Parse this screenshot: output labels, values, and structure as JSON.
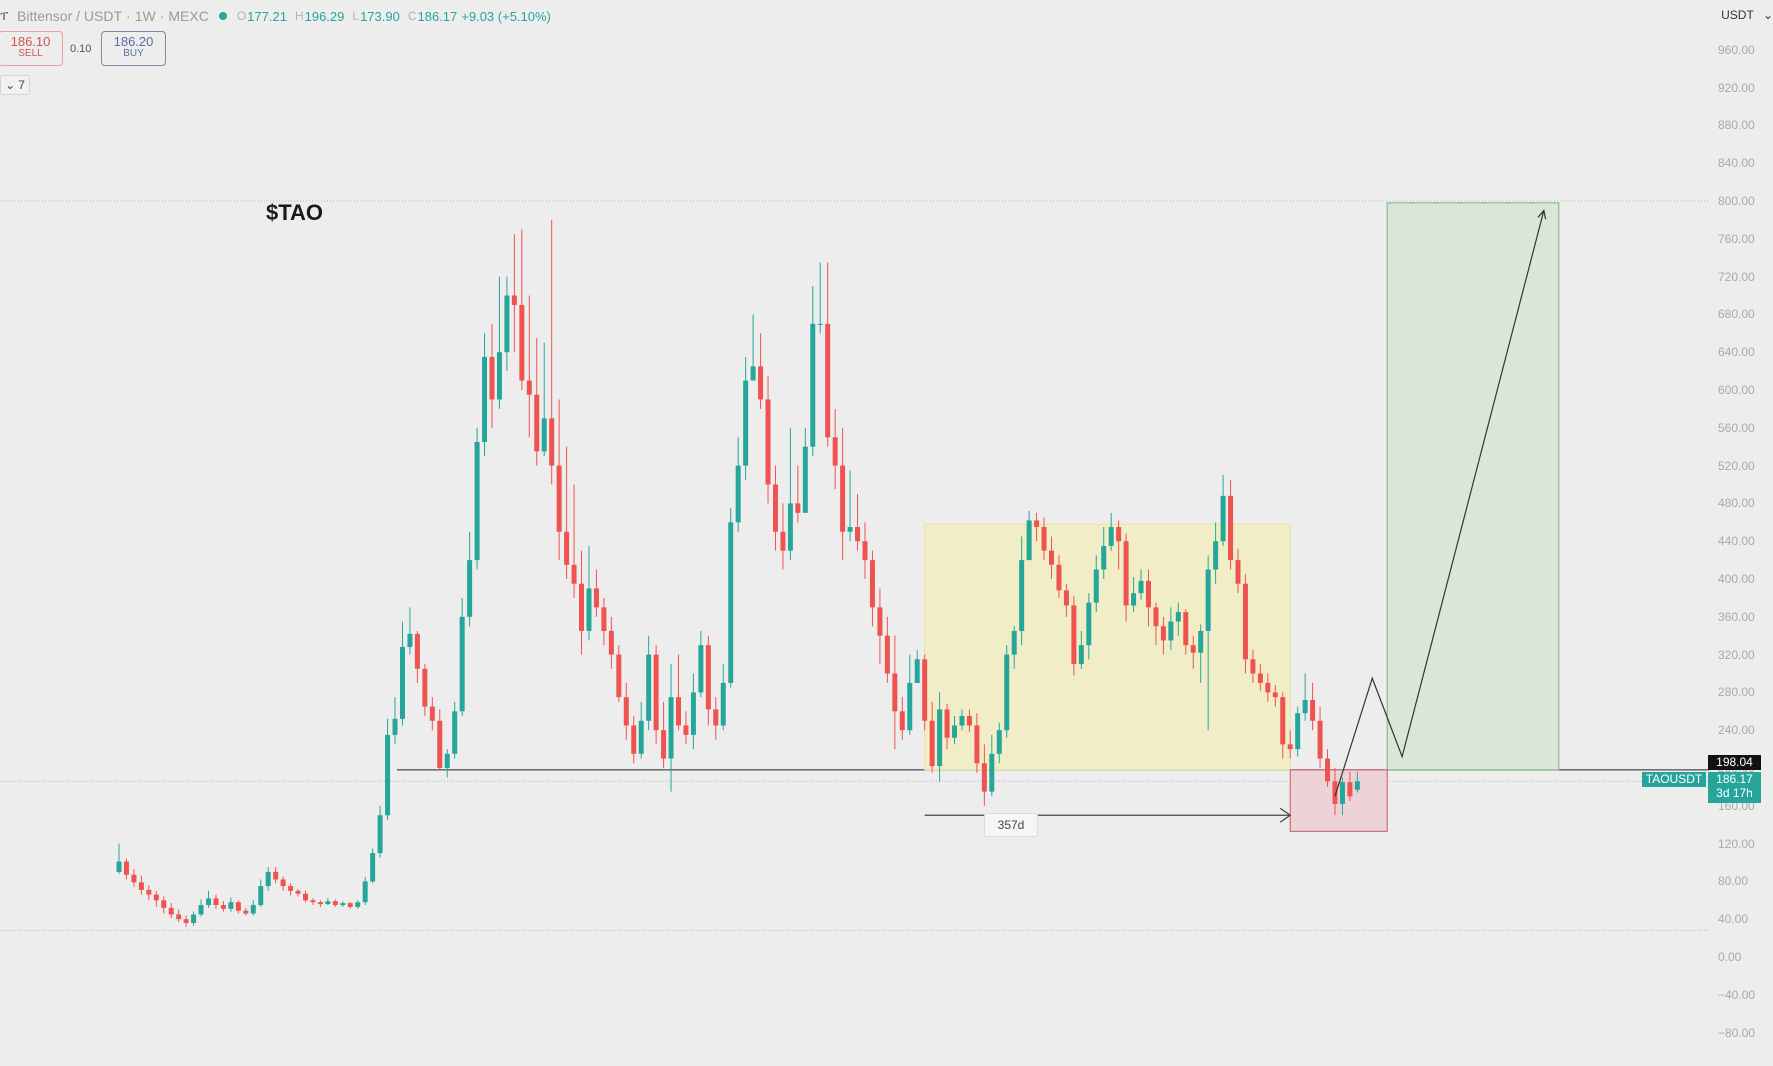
{
  "header": {
    "symbol": "Bittensor / USDT",
    "interval": "1W",
    "exchange": "MEXC",
    "open_label": "O",
    "open": "177.21",
    "high_label": "H",
    "high": "196.29",
    "low_label": "L",
    "low": "173.90",
    "close_label": "C",
    "close": "186.17",
    "change": "+9.03 (+5.10%)"
  },
  "trade": {
    "sell_price": "186.10",
    "sell_label": "SELL",
    "spread": "0.10",
    "buy_price": "186.20",
    "buy_label": "BUY"
  },
  "indicator_toggle": "7",
  "currency": "USDT",
  "annotations": {
    "ticker_title": "$TAO",
    "level_tag": "198.04",
    "symbol_tag": "TAOUSDT",
    "price_tag": "186.17",
    "countdown": "3d 17h",
    "duration_label": "357d"
  },
  "colors": {
    "up": "#26a69a",
    "down": "#ef5350",
    "range_box": "#f1ecbf",
    "target_box": "#d5e5d3",
    "stop_box": "#eccdd3"
  },
  "chart_data": {
    "type": "candlestick",
    "title": "$TAO",
    "xlabel": "",
    "ylabel": "",
    "y_axis_labels": [
      "960.00",
      "920.00",
      "880.00",
      "840.00",
      "800.00",
      "760.00",
      "720.00",
      "680.00",
      "640.00",
      "600.00",
      "560.00",
      "520.00",
      "480.00",
      "440.00",
      "400.00",
      "360.00",
      "320.00",
      "280.00",
      "240.00",
      "200.00",
      "160.00",
      "120.00",
      "80.00",
      "40.00",
      "0.00",
      "−40.00",
      "−80.00"
    ],
    "ylim": [
      -90,
      1010
    ],
    "horizontal_levels": [
      800,
      198.04,
      186,
      28
    ],
    "rectangles": [
      {
        "name": "range",
        "from_index": 108,
        "to_index": 157,
        "top": 458,
        "bottom": 198
      },
      {
        "name": "target",
        "from_index": 170,
        "to_index": 193,
        "top": 798,
        "bottom": 198
      },
      {
        "name": "stop",
        "from_index": 157,
        "to_index": 170,
        "top": 198,
        "bottom": 133
      }
    ],
    "projection_path": [
      [
        163,
        170
      ],
      [
        168,
        295
      ],
      [
        172,
        212
      ],
      [
        191,
        790
      ]
    ],
    "candles": [
      [
        90,
        101,
        120,
        88
      ],
      [
        101,
        87,
        104,
        82
      ],
      [
        87,
        79,
        93,
        74
      ],
      [
        79,
        71,
        86,
        66
      ],
      [
        71,
        66,
        76,
        60
      ],
      [
        66,
        60,
        70,
        53
      ],
      [
        60,
        52,
        64,
        46
      ],
      [
        52,
        45,
        57,
        41
      ],
      [
        45,
        40,
        50,
        37
      ],
      [
        40,
        36,
        44,
        32
      ],
      [
        36,
        45,
        48,
        33
      ],
      [
        45,
        55,
        61,
        43
      ],
      [
        55,
        62,
        70,
        52
      ],
      [
        62,
        55,
        66,
        51
      ],
      [
        55,
        51,
        59,
        48
      ],
      [
        51,
        58,
        63,
        48
      ],
      [
        58,
        49,
        60,
        46
      ],
      [
        49,
        46,
        52,
        44
      ],
      [
        46,
        55,
        60,
        44
      ],
      [
        55,
        75,
        82,
        53
      ],
      [
        75,
        90,
        95,
        70
      ],
      [
        90,
        82,
        95,
        78
      ],
      [
        82,
        75,
        85,
        70
      ],
      [
        75,
        70,
        78,
        65
      ],
      [
        70,
        67,
        72,
        64
      ],
      [
        67,
        60,
        70,
        58
      ],
      [
        60,
        58,
        62,
        55
      ],
      [
        58,
        56,
        60,
        53
      ],
      [
        56,
        59,
        62,
        55
      ],
      [
        59,
        55,
        61,
        53
      ],
      [
        55,
        57,
        59,
        53
      ],
      [
        57,
        53,
        58,
        51
      ],
      [
        53,
        58,
        60,
        51
      ],
      [
        58,
        80,
        85,
        55
      ],
      [
        80,
        110,
        115,
        78
      ],
      [
        110,
        150,
        160,
        105
      ],
      [
        150,
        235,
        252,
        145
      ],
      [
        235,
        252,
        275,
        225
      ],
      [
        252,
        328,
        355,
        245
      ],
      [
        328,
        342,
        370,
        320
      ],
      [
        342,
        305,
        345,
        290
      ],
      [
        305,
        265,
        310,
        255
      ],
      [
        265,
        250,
        275,
        240
      ],
      [
        250,
        200,
        262,
        198
      ],
      [
        200,
        215,
        220,
        190
      ],
      [
        215,
        260,
        270,
        210
      ],
      [
        260,
        360,
        380,
        255
      ],
      [
        360,
        420,
        450,
        350
      ],
      [
        420,
        545,
        560,
        410
      ],
      [
        545,
        635,
        660,
        530
      ],
      [
        635,
        590,
        670,
        560
      ],
      [
        590,
        640,
        720,
        580
      ],
      [
        640,
        700,
        720,
        620
      ],
      [
        700,
        690,
        765,
        640
      ],
      [
        690,
        610,
        770,
        600
      ],
      [
        610,
        595,
        700,
        550
      ],
      [
        595,
        535,
        655,
        520
      ],
      [
        535,
        570,
        650,
        530
      ],
      [
        570,
        520,
        780,
        500
      ],
      [
        520,
        450,
        590,
        420
      ],
      [
        450,
        415,
        540,
        400
      ],
      [
        415,
        395,
        500,
        380
      ],
      [
        395,
        345,
        430,
        320
      ],
      [
        345,
        390,
        435,
        335
      ],
      [
        390,
        370,
        410,
        360
      ],
      [
        370,
        345,
        380,
        330
      ],
      [
        345,
        320,
        360,
        305
      ],
      [
        320,
        275,
        330,
        270
      ],
      [
        275,
        245,
        290,
        230
      ],
      [
        245,
        215,
        255,
        205
      ],
      [
        215,
        250,
        270,
        210
      ],
      [
        250,
        320,
        340,
        240
      ],
      [
        320,
        240,
        330,
        225
      ],
      [
        240,
        210,
        270,
        200
      ],
      [
        210,
        275,
        310,
        175
      ],
      [
        275,
        245,
        320,
        240
      ],
      [
        245,
        235,
        260,
        225
      ],
      [
        235,
        280,
        300,
        220
      ],
      [
        280,
        330,
        345,
        275
      ],
      [
        330,
        262,
        340,
        245
      ],
      [
        262,
        245,
        275,
        230
      ],
      [
        245,
        290,
        310,
        240
      ],
      [
        290,
        460,
        475,
        285
      ],
      [
        460,
        520,
        550,
        450
      ],
      [
        520,
        610,
        635,
        505
      ],
      [
        610,
        625,
        680,
        615
      ],
      [
        625,
        590,
        660,
        580
      ],
      [
        590,
        500,
        615,
        480
      ],
      [
        500,
        450,
        520,
        430
      ],
      [
        450,
        430,
        480,
        410
      ],
      [
        430,
        480,
        560,
        420
      ],
      [
        480,
        470,
        520,
        460
      ],
      [
        470,
        540,
        560,
        520
      ],
      [
        540,
        670,
        710,
        530
      ],
      [
        670,
        670,
        735,
        660
      ],
      [
        670,
        550,
        735,
        540
      ],
      [
        550,
        520,
        580,
        495
      ],
      [
        520,
        450,
        560,
        420
      ],
      [
        450,
        455,
        515,
        440
      ],
      [
        455,
        440,
        490,
        430
      ],
      [
        440,
        420,
        460,
        400
      ],
      [
        420,
        370,
        430,
        350
      ],
      [
        370,
        340,
        390,
        310
      ],
      [
        340,
        300,
        360,
        290
      ],
      [
        300,
        260,
        340,
        220
      ],
      [
        260,
        240,
        275,
        230
      ],
      [
        240,
        290,
        320,
        235
      ],
      [
        290,
        315,
        325,
        295
      ],
      [
        315,
        250,
        320,
        240
      ],
      [
        250,
        202,
        270,
        195
      ],
      [
        202,
        262,
        280,
        185
      ],
      [
        262,
        232,
        268,
        220
      ],
      [
        232,
        245,
        255,
        225
      ],
      [
        245,
        255,
        262,
        240
      ],
      [
        255,
        245,
        262,
        238
      ],
      [
        245,
        205,
        258,
        195
      ],
      [
        205,
        175,
        225,
        160
      ],
      [
        175,
        215,
        235,
        170
      ],
      [
        215,
        240,
        248,
        205
      ],
      [
        240,
        320,
        330,
        232
      ],
      [
        320,
        345,
        350,
        305
      ],
      [
        345,
        420,
        445,
        330
      ],
      [
        420,
        462,
        472,
        420
      ],
      [
        462,
        455,
        470,
        440
      ],
      [
        455,
        430,
        465,
        420
      ],
      [
        430,
        415,
        445,
        400
      ],
      [
        415,
        388,
        425,
        380
      ],
      [
        388,
        372,
        395,
        360
      ],
      [
        372,
        310,
        382,
        298
      ],
      [
        310,
        330,
        345,
        305
      ],
      [
        330,
        375,
        385,
        315
      ],
      [
        375,
        410,
        425,
        365
      ],
      [
        410,
        435,
        455,
        400
      ],
      [
        435,
        455,
        470,
        430
      ],
      [
        455,
        440,
        462,
        410
      ],
      [
        440,
        372,
        448,
        355
      ],
      [
        372,
        385,
        402,
        365
      ],
      [
        385,
        398,
        410,
        378
      ],
      [
        398,
        370,
        410,
        350
      ],
      [
        370,
        350,
        375,
        330
      ],
      [
        350,
        335,
        360,
        320
      ],
      [
        335,
        355,
        370,
        325
      ],
      [
        355,
        365,
        375,
        340
      ],
      [
        365,
        330,
        368,
        320
      ],
      [
        330,
        322,
        340,
        305
      ],
      [
        322,
        345,
        352,
        290
      ],
      [
        345,
        410,
        425,
        240
      ],
      [
        410,
        440,
        460,
        395
      ],
      [
        440,
        488,
        510,
        435
      ],
      [
        488,
        420,
        505,
        410
      ],
      [
        420,
        395,
        432,
        385
      ],
      [
        395,
        315,
        405,
        300
      ],
      [
        315,
        300,
        325,
        290
      ],
      [
        300,
        290,
        310,
        282
      ],
      [
        290,
        280,
        300,
        270
      ],
      [
        280,
        275,
        288,
        265
      ],
      [
        275,
        225,
        280,
        210
      ],
      [
        225,
        220,
        240,
        210
      ],
      [
        220,
        258,
        265,
        212
      ],
      [
        258,
        272,
        300,
        250
      ],
      [
        272,
        250,
        290,
        240
      ],
      [
        250,
        210,
        265,
        200
      ],
      [
        210,
        186,
        220,
        180
      ],
      [
        186,
        162,
        200,
        150
      ],
      [
        162,
        185,
        190,
        150
      ],
      [
        185,
        170,
        196,
        165
      ],
      [
        177,
        186,
        196,
        174
      ]
    ]
  }
}
